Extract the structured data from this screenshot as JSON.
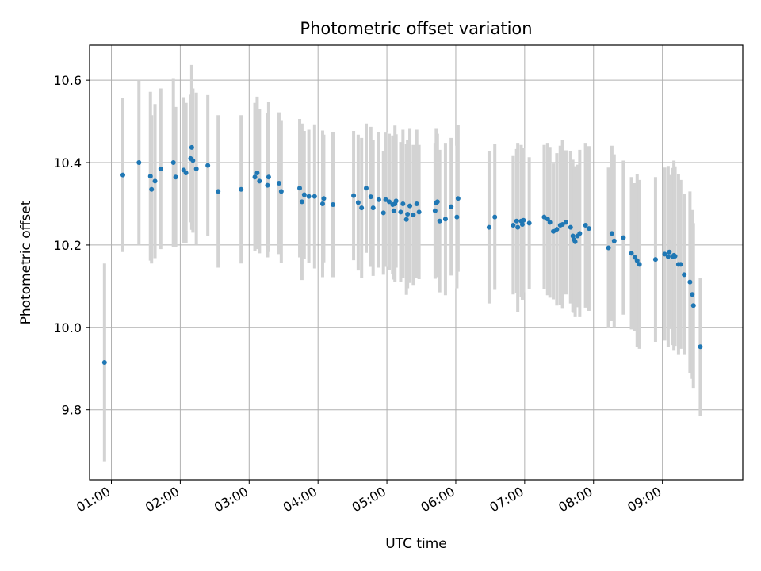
{
  "chart_data": {
    "type": "scatter",
    "title": "Photometric offset variation",
    "xlabel": "UTC time",
    "ylabel": "Photometric offset",
    "xlim": [
      "00:41",
      "10:10"
    ],
    "ylim": [
      9.63,
      10.685
    ],
    "grid": true,
    "x_ticks": [
      "01:00",
      "02:00",
      "03:00",
      "04:00",
      "05:00",
      "06:00",
      "07:00",
      "08:00",
      "09:00"
    ],
    "y_ticks": [
      9.8,
      10.0,
      10.2,
      10.4,
      10.6
    ],
    "y_tick_labels": [
      "9.8",
      "10.0",
      "10.2",
      "10.4",
      "10.6"
    ],
    "colors": {
      "points": "#1f77b4",
      "errorbars": "#d3d3d3",
      "grid": "#b0b0b0"
    },
    "series": [
      {
        "x": [
          "00:54",
          "01:10",
          "01:24",
          "01:34",
          "01:35",
          "01:38",
          "01:43",
          "01:54",
          "01:56",
          "02:03",
          "02:05",
          "02:09",
          "02:10",
          "02:11",
          "02:14",
          "02:24",
          "02:33",
          "02:53",
          "03:05",
          "03:07",
          "03:09",
          "03:16",
          "03:17",
          "03:26",
          "03:28",
          "03:44",
          "03:46",
          "03:48",
          "03:52",
          "03:57",
          "04:04",
          "04:05",
          "04:13",
          "04:31",
          "04:35",
          "04:38",
          "04:42",
          "04:46",
          "04:48",
          "04:53",
          "04:57",
          "04:59",
          "05:02",
          "05:05",
          "05:06",
          "05:07",
          "05:08",
          "05:12",
          "05:14",
          "05:17",
          "05:18",
          "05:20",
          "05:23",
          "05:26",
          "05:28",
          "05:42",
          "05:43",
          "05:44",
          "05:46",
          "05:51",
          "05:56",
          "06:01",
          "06:02",
          "06:29",
          "06:34",
          "06:50",
          "06:53",
          "06:54",
          "06:57",
          "06:58",
          "06:59",
          "07:04",
          "07:17",
          "07:20",
          "07:22",
          "07:25",
          "07:28",
          "07:31",
          "07:33",
          "07:36",
          "07:40",
          "07:42",
          "07:43",
          "07:44",
          "07:46",
          "07:48",
          "07:53",
          "07:56",
          "08:13",
          "08:16",
          "08:18",
          "08:26",
          "08:33",
          "08:36",
          "08:38",
          "08:40",
          "08:54",
          "09:02",
          "09:05",
          "09:06",
          "09:09",
          "09:10",
          "09:11",
          "09:14",
          "09:16",
          "09:19",
          "09:24",
          "09:26",
          "09:27",
          "09:33"
        ],
        "y": [
          9.915,
          10.37,
          10.4,
          10.367,
          10.335,
          10.355,
          10.385,
          10.4,
          10.365,
          10.382,
          10.375,
          10.41,
          10.437,
          10.405,
          10.385,
          10.393,
          10.33,
          10.335,
          10.365,
          10.375,
          10.355,
          10.345,
          10.365,
          10.35,
          10.33,
          10.338,
          10.305,
          10.322,
          10.318,
          10.318,
          10.3,
          10.313,
          10.298,
          10.32,
          10.303,
          10.29,
          10.338,
          10.317,
          10.29,
          10.31,
          10.278,
          10.31,
          10.305,
          10.298,
          10.283,
          10.3,
          10.307,
          10.28,
          10.3,
          10.262,
          10.275,
          10.295,
          10.273,
          10.3,
          10.28,
          10.283,
          10.302,
          10.305,
          10.258,
          10.263,
          10.293,
          10.268,
          10.313,
          10.243,
          10.268,
          10.248,
          10.258,
          10.243,
          10.258,
          10.25,
          10.26,
          10.253,
          10.268,
          10.263,
          10.255,
          10.233,
          10.238,
          10.248,
          10.25,
          10.255,
          10.243,
          10.222,
          10.213,
          10.208,
          10.222,
          10.228,
          10.248,
          10.24,
          10.193,
          10.228,
          10.21,
          10.218,
          10.18,
          10.17,
          10.162,
          10.153,
          10.165,
          10.178,
          10.172,
          10.183,
          10.172,
          10.175,
          10.173,
          10.153,
          10.153,
          10.128,
          10.11,
          10.08,
          10.053,
          9.953
        ],
        "err": [
          0.24,
          0.187,
          0.2,
          0.205,
          0.18,
          0.187,
          0.195,
          0.205,
          0.17,
          0.177,
          0.17,
          0.155,
          0.2,
          0.175,
          0.185,
          0.171,
          0.185,
          0.18,
          0.18,
          0.185,
          0.175,
          0.175,
          0.182,
          0.172,
          0.173,
          0.168,
          0.19,
          0.155,
          0.162,
          0.175,
          0.178,
          0.155,
          0.176,
          0.157,
          0.165,
          0.17,
          0.157,
          0.17,
          0.165,
          0.165,
          0.15,
          0.163,
          0.165,
          0.168,
          0.167,
          0.19,
          0.162,
          0.17,
          0.18,
          0.183,
          0.18,
          0.187,
          0.17,
          0.18,
          0.163,
          0.165,
          0.18,
          0.165,
          0.173,
          0.185,
          0.167,
          0.173,
          0.178,
          0.185,
          0.177,
          0.168,
          0.175,
          0.205,
          0.185,
          0.183,
          0.175,
          0.16,
          0.175,
          0.185,
          0.183,
          0.165,
          0.185,
          0.193,
          0.205,
          0.175,
          0.185,
          0.185,
          0.178,
          0.183,
          0.173,
          0.203,
          0.2,
          0.2,
          0.195,
          0.213,
          0.21,
          0.187,
          0.185,
          0.18,
          0.21,
          0.205,
          0.2,
          0.21,
          0.22,
          0.187,
          0.215,
          0.23,
          0.218,
          0.22,
          0.205,
          0.195,
          0.22,
          0.205,
          0.2,
          0.168
        ]
      }
    ]
  }
}
